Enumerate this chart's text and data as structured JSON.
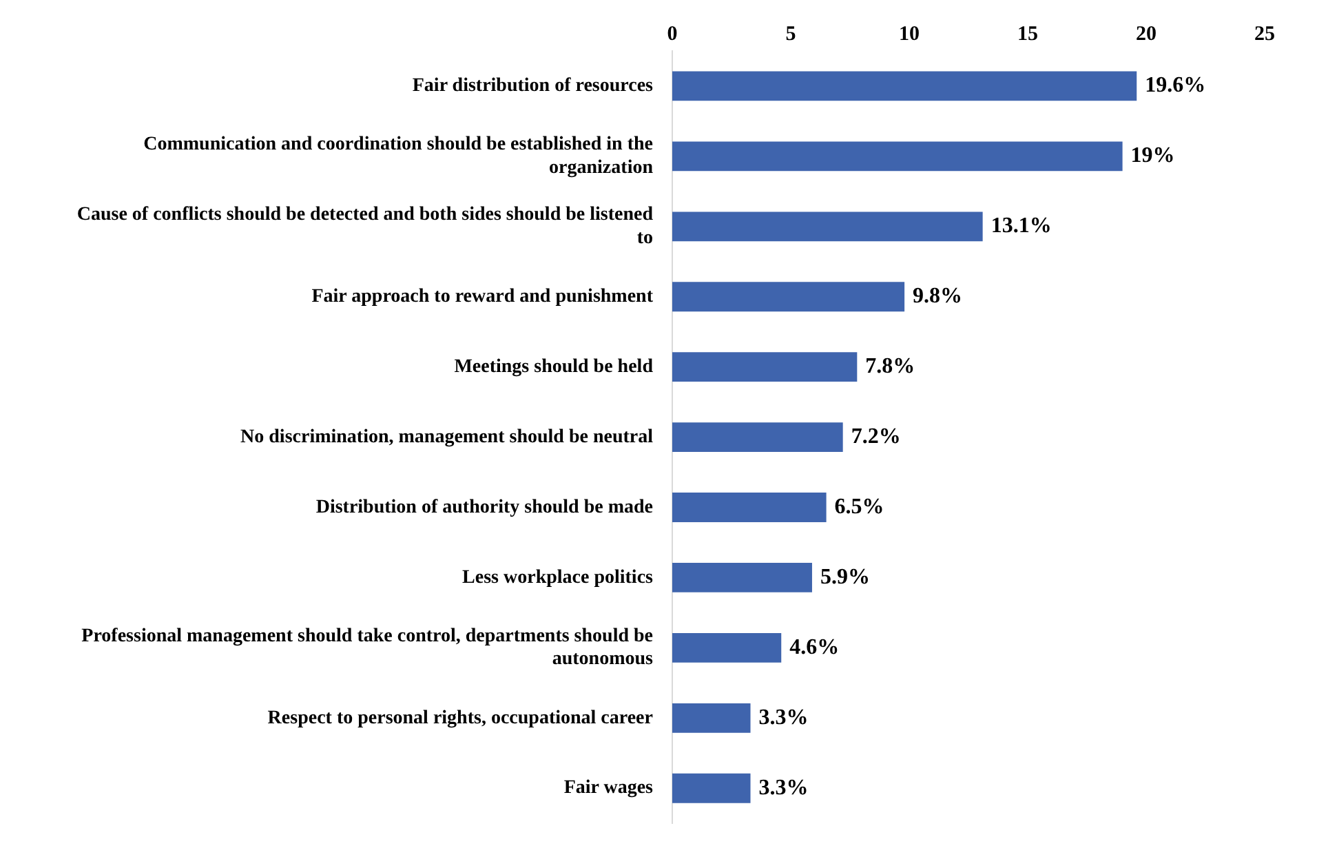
{
  "chart_data": {
    "type": "bar",
    "orientation": "horizontal",
    "categories": [
      "Fair distribution of resources",
      "Communication and coordination should be established in the organization",
      "Cause of conflicts should be detected and both sides should be listened to",
      "Fair approach to reward and punishment",
      "Meetings should be held",
      "No discrimination, management should be neutral",
      "Distribution of authority should be made",
      "Less workplace politics",
      "Professional management should take control, departments should be autonomous",
      "Respect to personal rights, occupational career",
      "Fair wages"
    ],
    "values": [
      19.6,
      19,
      13.1,
      9.8,
      7.8,
      7.2,
      6.5,
      5.9,
      4.6,
      3.3,
      3.3
    ],
    "value_labels": [
      "19.6%",
      "19%",
      "13.1%",
      "9.8%",
      "7.8%",
      "7.2%",
      "6.5%",
      "5.9%",
      "4.6%",
      "3.3%",
      "3.3%"
    ],
    "color": "#3f64ad",
    "xlim": [
      0,
      25
    ],
    "xticks": [
      0,
      5,
      10,
      15,
      20,
      25
    ],
    "grid": false,
    "legend": false
  }
}
